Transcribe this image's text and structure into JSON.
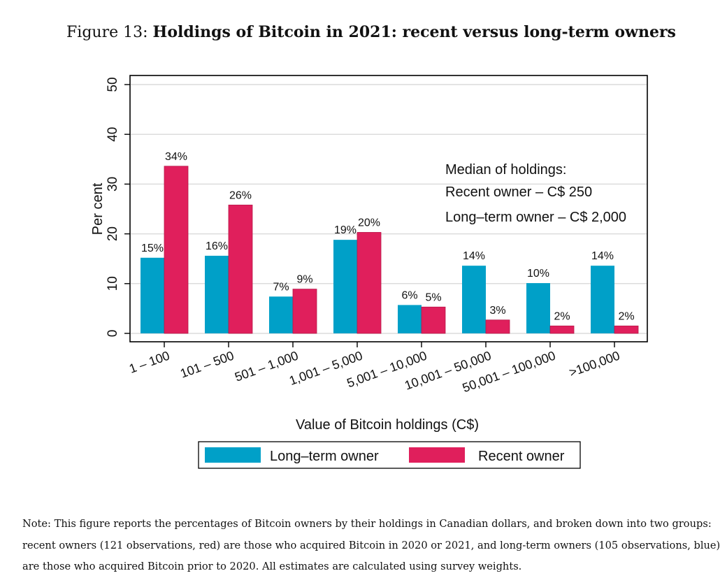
{
  "caption": {
    "prefix": "Figure 13:",
    "title": "Holdings of Bitcoin in 2021: recent versus long-term owners"
  },
  "chart_data": {
    "type": "bar",
    "title": "Holdings of Bitcoin in 2021: recent versus long-term owners",
    "xlabel": "Value of Bitcoin holdings (C$)",
    "ylabel": "Per cent",
    "ylim": [
      0,
      50
    ],
    "yticks": [
      0,
      10,
      20,
      30,
      40,
      50
    ],
    "grid": true,
    "categories": [
      "1 – 100",
      "101 – 500",
      "501 – 1,000",
      "1,001 – 5,000",
      "5,001 – 10,000",
      "10,001 – 50,000",
      "50,001 – 100,000",
      ">100,000"
    ],
    "series": [
      {
        "name": "Long–term owner",
        "color": "#00a0c8",
        "values": [
          15.2,
          15.6,
          7.4,
          18.8,
          5.7,
          13.6,
          10.1,
          13.6
        ],
        "labels": [
          "15%",
          "16%",
          "7%",
          "19%",
          "6%",
          "14%",
          "10%",
          "14%"
        ]
      },
      {
        "name": "Recent owner",
        "color": "#e01f5c",
        "values": [
          33.6,
          25.8,
          8.9,
          20.3,
          5.3,
          2.7,
          1.5,
          1.5
        ],
        "labels": [
          "34%",
          "26%",
          "9%",
          "20%",
          "5%",
          "3%",
          "2%",
          "2%"
        ]
      }
    ],
    "annotation": {
      "lines": [
        "Median of holdings:",
        "Recent owner – C$ 250",
        "Long–term owner – C$ 2,000"
      ],
      "placement": "top-right"
    },
    "legend": {
      "placement": "bottom",
      "entries": [
        "Long–term owner",
        "Recent owner"
      ]
    }
  },
  "note": "Note: This figure reports the percentages of Bitcoin owners by their holdings in Canadian dollars, and broken down into two groups: recent owners (121 observations, red) are those who acquired Bitcoin in 2020 or 2021, and long-term owners (105 observations, blue) are those who acquired Bitcoin prior to 2020. All estimates are calculated using survey weights."
}
